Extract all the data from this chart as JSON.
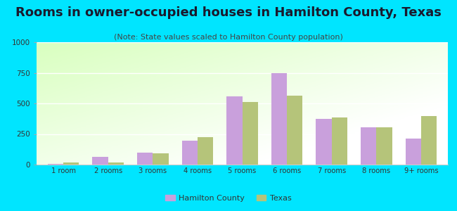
{
  "title": "Rooms in owner-occupied houses in Hamilton County, Texas",
  "subtitle": "(Note: State values scaled to Hamilton County population)",
  "categories": [
    "1 room",
    "2 rooms",
    "3 rooms",
    "4 rooms",
    "5 rooms",
    "6 rooms",
    "7 rooms",
    "8 rooms",
    "9+ rooms"
  ],
  "hamilton_county": [
    5,
    65,
    100,
    195,
    560,
    750,
    375,
    305,
    215
  ],
  "texas": [
    20,
    20,
    90,
    225,
    510,
    565,
    385,
    305,
    395
  ],
  "hamilton_color": "#c9a0dc",
  "texas_color": "#b5c47a",
  "background_outer": "#00e5ff",
  "ylim": [
    0,
    1000
  ],
  "yticks": [
    0,
    250,
    500,
    750,
    1000
  ],
  "title_fontsize": 13,
  "subtitle_fontsize": 8,
  "legend_labels": [
    "Hamilton County",
    "Texas"
  ],
  "bar_width": 0.35
}
